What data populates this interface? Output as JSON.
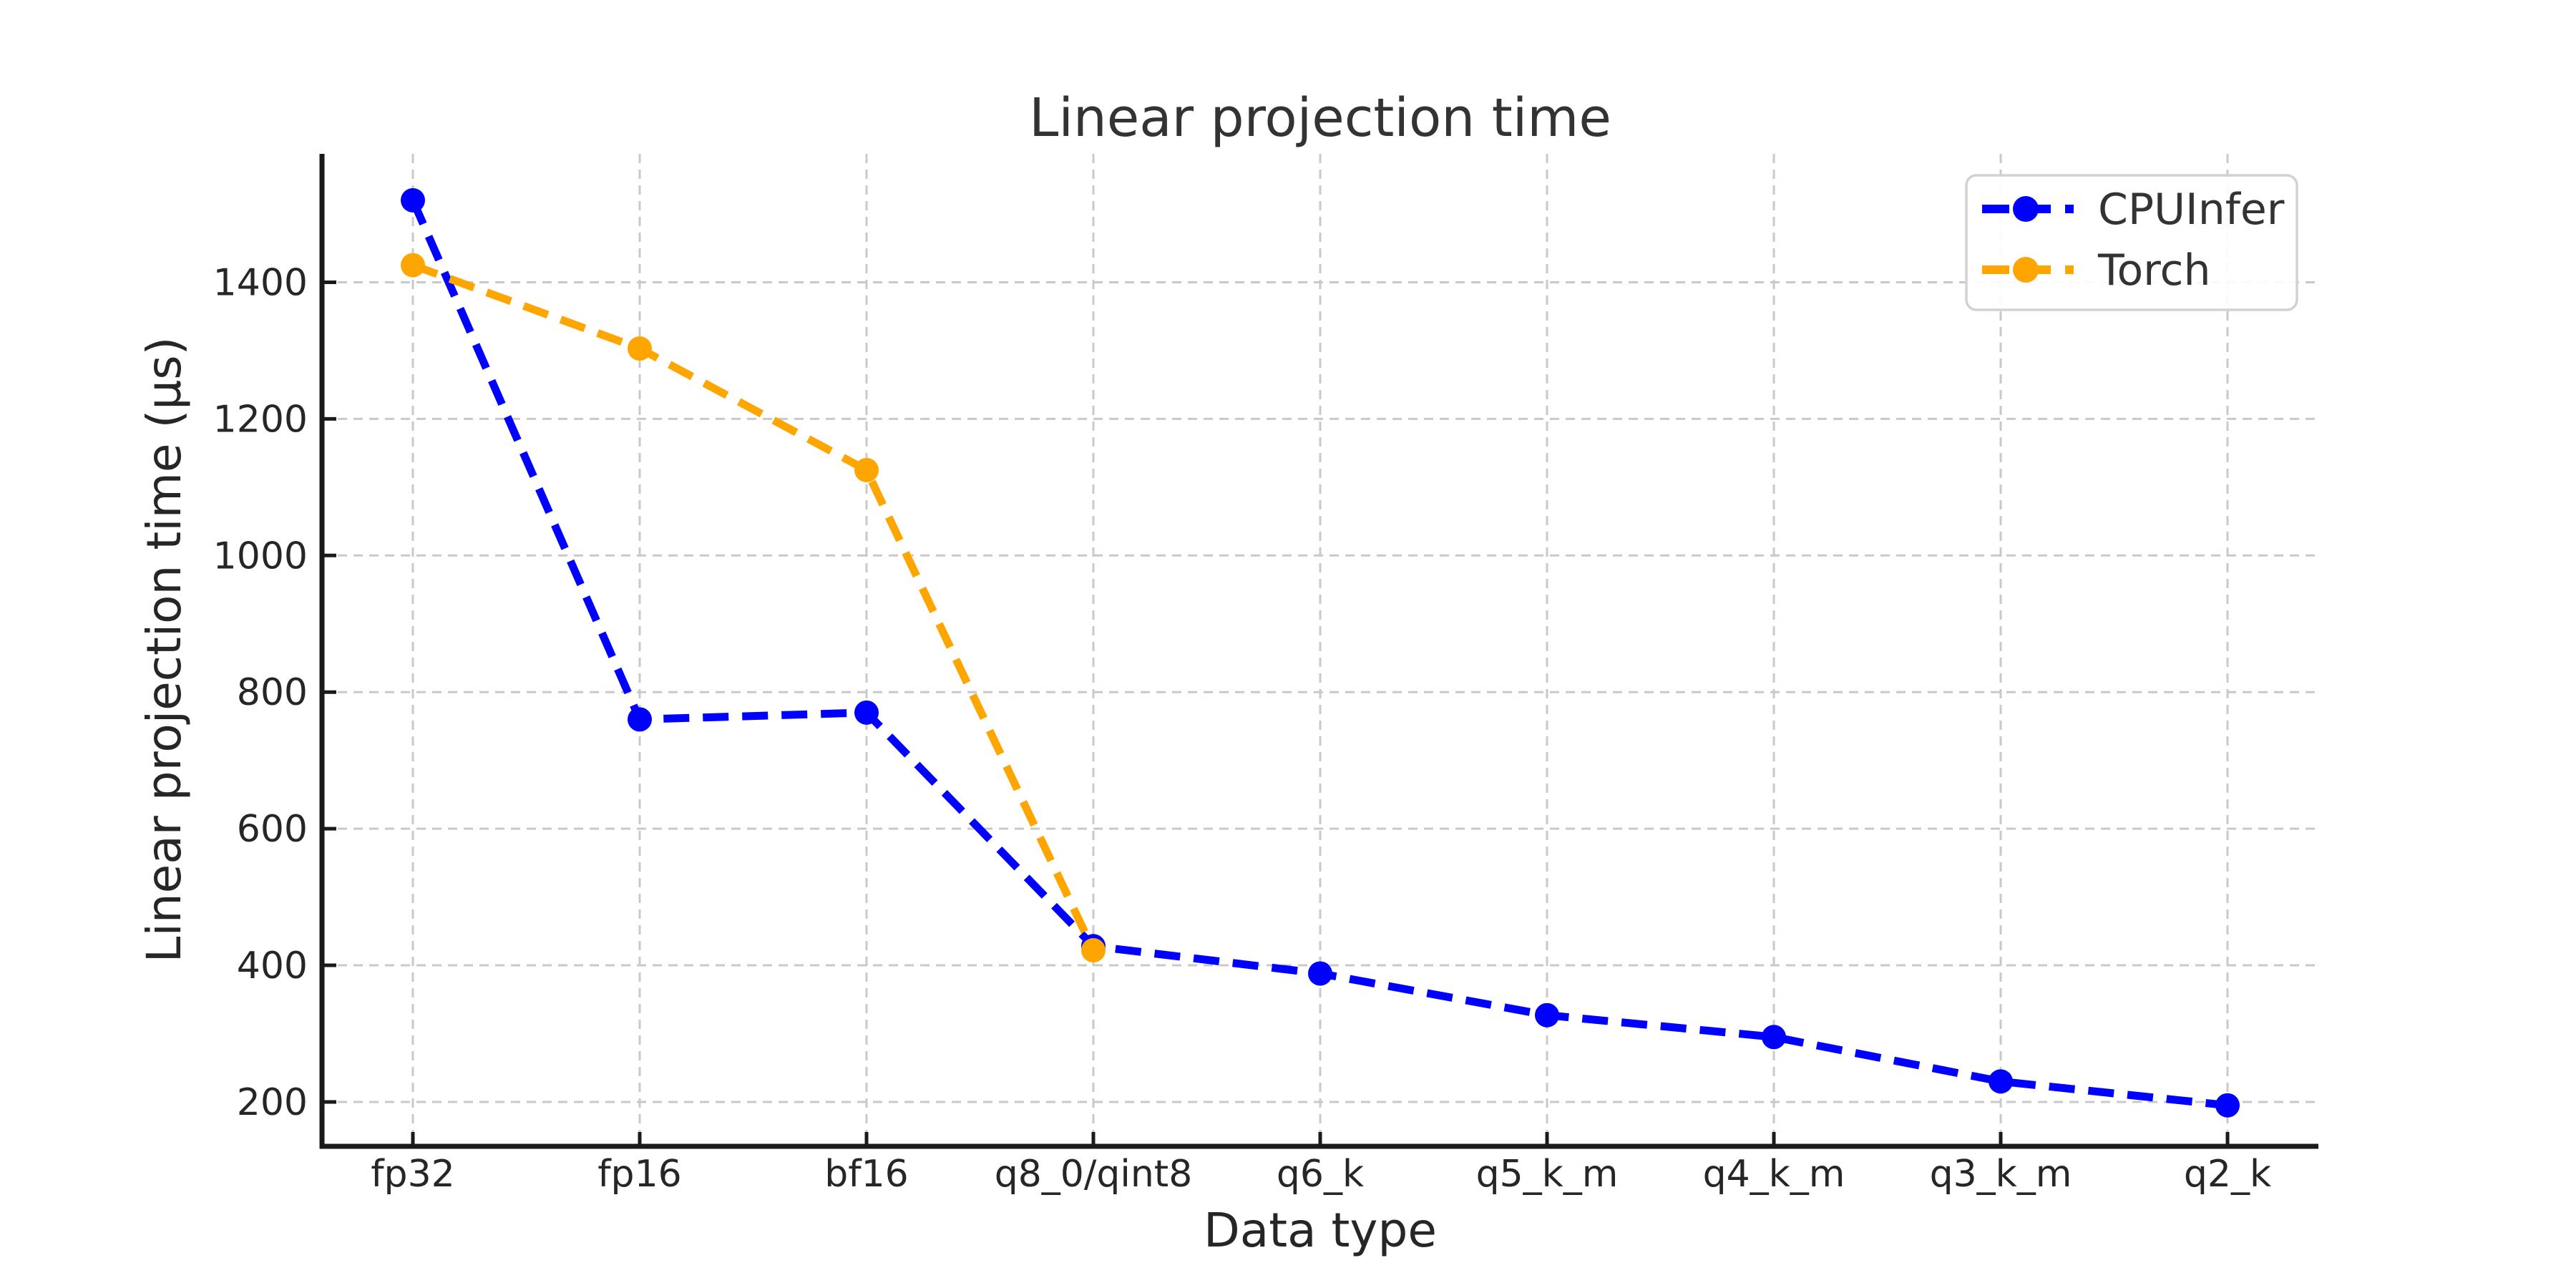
{
  "figure": {
    "background": "#ffffff"
  },
  "chart_data": {
    "type": "line",
    "title": "Linear projection time",
    "xlabel": "Data type",
    "ylabel": "Linear projection time (µs)",
    "categories": [
      "fp32",
      "fp16",
      "bf16",
      "q8_0/qint8",
      "q6_k",
      "q5_k_m",
      "q4_k_m",
      "q3_k_m",
      "q2_k"
    ],
    "series": [
      {
        "name": "CPUInfer",
        "color": "#0000ff",
        "line_style": "dashed",
        "marker": "circle",
        "values": [
          1520,
          760,
          770,
          428,
          388,
          327,
          295,
          230,
          195
        ]
      },
      {
        "name": "Torch",
        "color": "#ffa500",
        "line_style": "dashed",
        "marker": "circle",
        "values": [
          1425,
          1303,
          1125,
          422
        ]
      }
    ],
    "ylim": [
      135,
      1588
    ],
    "yticks": [
      200,
      400,
      600,
      800,
      1000,
      1200,
      1400
    ],
    "grid": true,
    "grid_style": "dashed",
    "legend": {
      "position": "upper-right",
      "labels": [
        "CPUInfer",
        "Torch"
      ]
    },
    "colors": {
      "axis": "#1a1a1a",
      "grid": "#c9c9c9",
      "text": "#262626",
      "legend_border": "#d2d2d2",
      "background": "#ffffff"
    }
  }
}
